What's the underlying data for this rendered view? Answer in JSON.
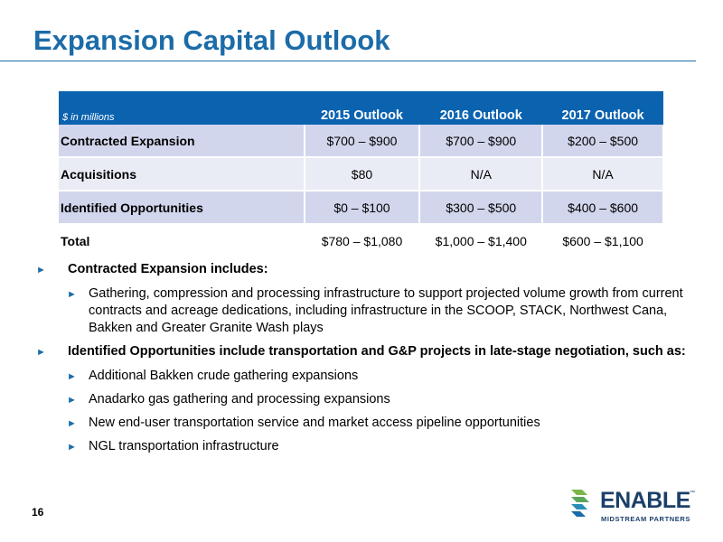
{
  "page": {
    "title": "Expansion Capital Outlook",
    "page_number": "16"
  },
  "table": {
    "unit_note": "$ in millions",
    "columns": [
      "2015 Outlook",
      "2016 Outlook",
      "2017 Outlook"
    ],
    "rows": [
      {
        "label": "Contracted Expansion",
        "values": [
          "$700 – $900",
          "$700 – $900",
          "$200 – $500"
        ]
      },
      {
        "label": "Acquisitions",
        "values": [
          "$80",
          "N/A",
          "N/A"
        ]
      },
      {
        "label": "Identified Opportunities",
        "values": [
          "$0 – $100",
          "$300 – $500",
          "$400 – $600"
        ]
      },
      {
        "label": "Total",
        "values": [
          "$780 – $1,080",
          "$1,000 – $1,400",
          "$600 – $1,100"
        ]
      }
    ]
  },
  "bullets": {
    "contracted_heading": "Contracted Expansion includes:",
    "contracted_items": [
      "Gathering, compression and processing infrastructure to support projected volume growth from current contracts and acreage dedications, including infrastructure in the SCOOP, STACK, Northwest Cana, Bakken and Greater Granite Wash plays"
    ],
    "opportunities_heading": "Identified Opportunities include transportation and G&P projects in late-stage negotiation, such as:",
    "opportunities_items": [
      "Additional Bakken crude gathering expansions",
      "Anadarko gas gathering and processing expansions",
      "New end-user transportation service and market access pipeline opportunities",
      "NGL transportation infrastructure"
    ],
    "arrow_glyph": "►"
  },
  "logo": {
    "name": "ENABLE",
    "tagline": "MIDSTREAM PARTNERS",
    "trademark": "™",
    "colors": {
      "green": "#7ab648",
      "blue": "#1b6ca8",
      "navy": "#1b3f6a"
    }
  },
  "colors": {
    "title": "#1b6ca8",
    "header_bg": "#0b63b0",
    "row_dark": "#d2d6ec",
    "row_light": "#eaecf5"
  }
}
